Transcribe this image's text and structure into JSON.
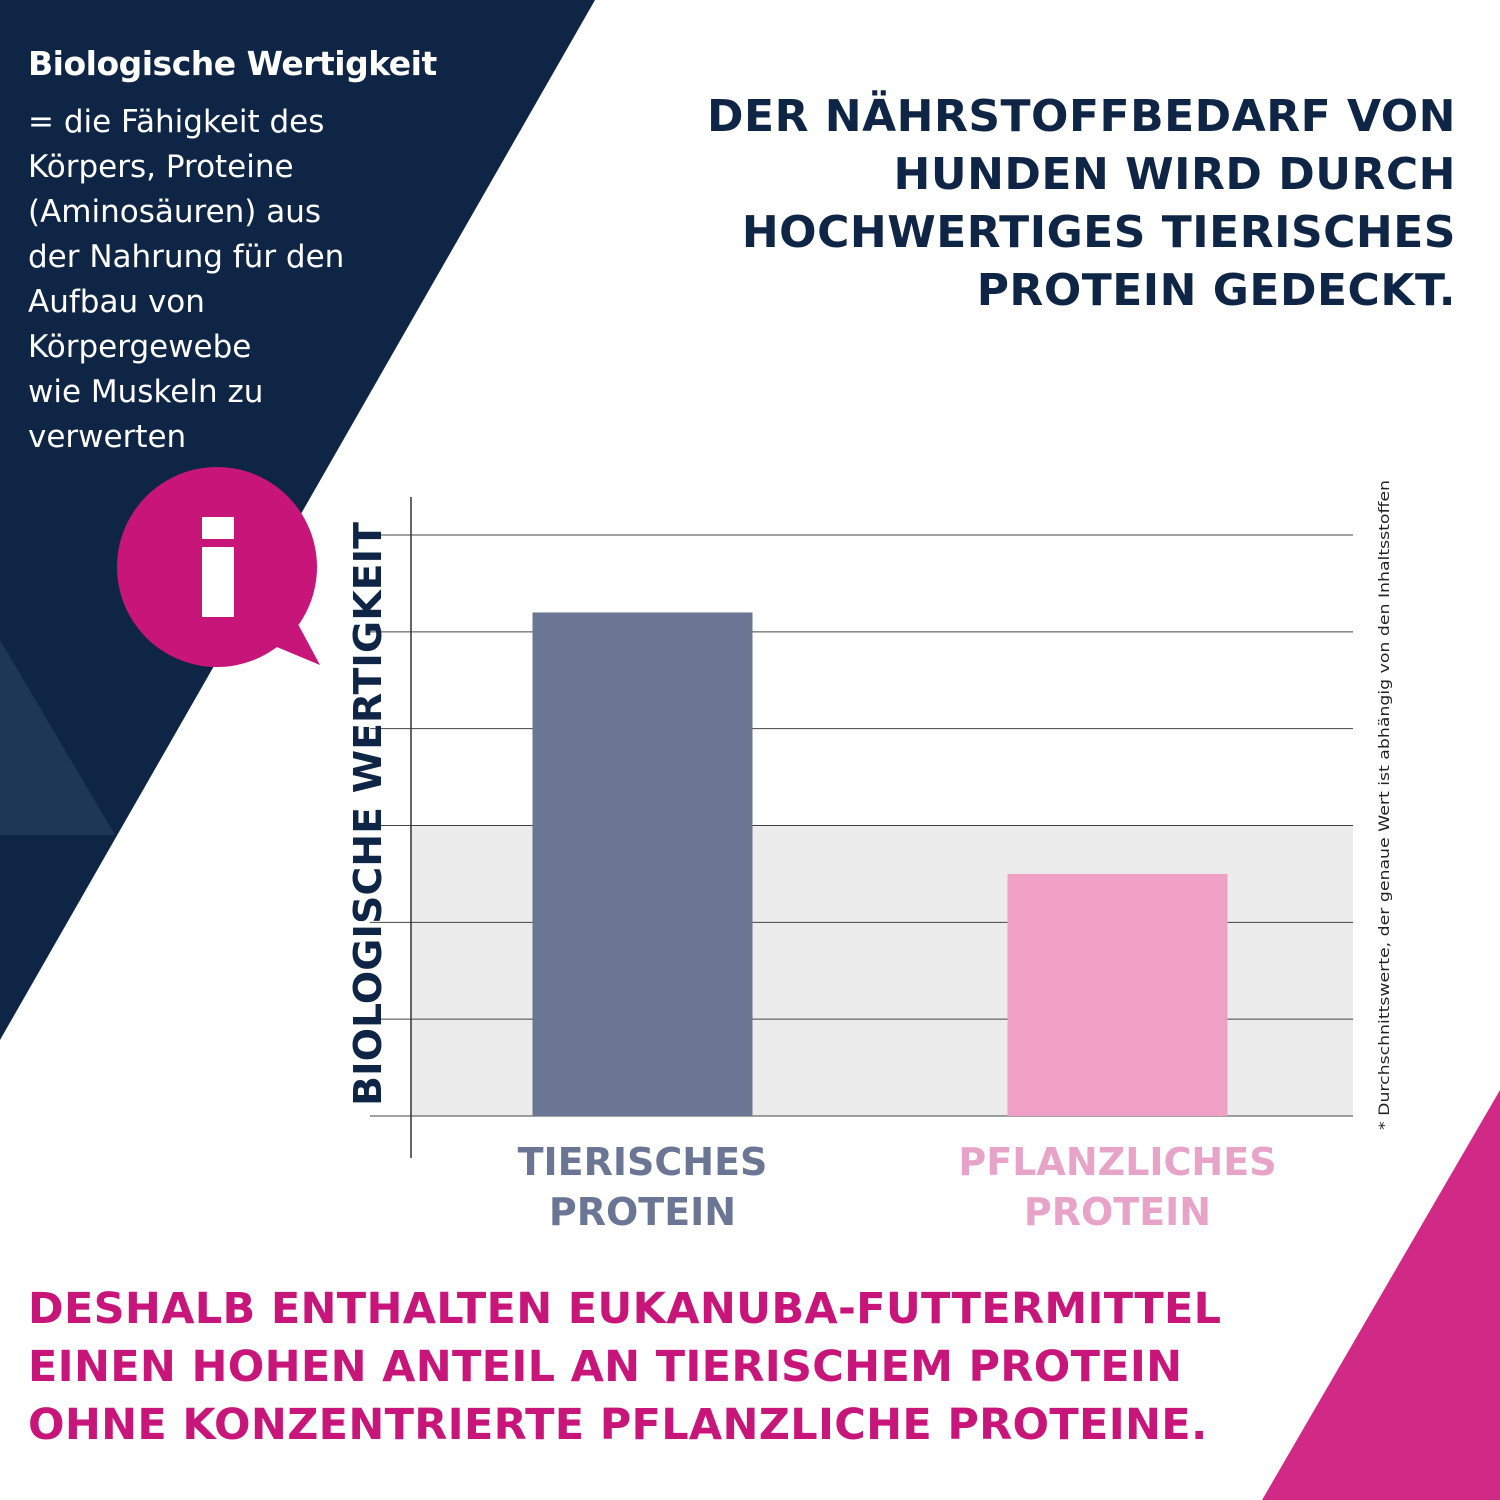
{
  "info_box": {
    "title": "Biologische Wertigkeit",
    "definition": "= die Fähigkeit des\nKörpers, Proteine\n(Aminosäuren) aus\nder Nahrung für den\nAufbau von\nKörpergewebe\nwie Muskeln zu\nverwerten",
    "icon": "info-speech-bubble-icon"
  },
  "headline": "DER NÄHRSTOFFBEDARF VON\nHUNDEN WIRD DURCH\nHOCHWERTIGES TIERISCHES\nPROTEIN GEDECKT.",
  "footer": "DESHALB ENTHALTEN EUKANUBA-FUTTERMITTEL\nEINEN HOHEN ANTEIL AN TIERISCHEM PROTEIN\nOHNE KONZENTRIERTE PFLANZLICHE PROTEINE.",
  "colors": {
    "navy": "#0f2545",
    "magenta": "#c8157a",
    "bar_animal": "#6b7695",
    "bar_plant": "#f09fc5",
    "label_animal": "#6b7695",
    "label_plant": "#e8a3c8",
    "band": "#ececec"
  },
  "chart_data": {
    "type": "bar",
    "categories": [
      "TIERISCHES\nPROTEIN",
      "PFLANZLICHES\nPROTEIN"
    ],
    "values": [
      5.2,
      2.5
    ],
    "ylim": [
      0,
      6
    ],
    "ylabel": "BIOLOGISCHE WERTIGKEIT",
    "xlabel": "",
    "grid": true,
    "shaded_band": [
      0,
      3
    ],
    "footnote": "* Durchschnittswerte, der genaue Wert ist abhängig von den Inhaltsstoffen"
  }
}
